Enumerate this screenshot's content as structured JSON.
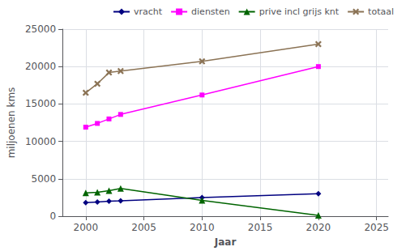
{
  "chart_data": {
    "type": "line",
    "xlabel": "Jaar",
    "ylabel": "miljoenen kms",
    "x": [
      2000,
      2001,
      2002,
      2003,
      2010,
      2020
    ],
    "series": [
      {
        "name": "vracht",
        "color": "#000080",
        "marker": "diamond",
        "values": [
          1800,
          1900,
          2000,
          2050,
          2500,
          3000
        ]
      },
      {
        "name": "diensten",
        "color": "#FF00FF",
        "marker": "square",
        "values": [
          11900,
          12400,
          13000,
          13600,
          16200,
          20000
        ]
      },
      {
        "name": "prive incl grijs knt",
        "color": "#006400",
        "marker": "triangle",
        "values": [
          3100,
          3200,
          3400,
          3700,
          2100,
          100
        ]
      },
      {
        "name": "totaal",
        "color": "#8B7355",
        "marker": "x",
        "values": [
          16500,
          17700,
          19200,
          19400,
          20700,
          23000
        ]
      }
    ],
    "xlim": [
      1998,
      2026
    ],
    "ylim": [
      0,
      25000
    ],
    "xticks": [
      2000,
      2005,
      2010,
      2015,
      2020,
      2025
    ],
    "yticks": [
      0,
      5000,
      10000,
      15000,
      20000,
      25000
    ],
    "grid": true,
    "legend": "upper right"
  }
}
